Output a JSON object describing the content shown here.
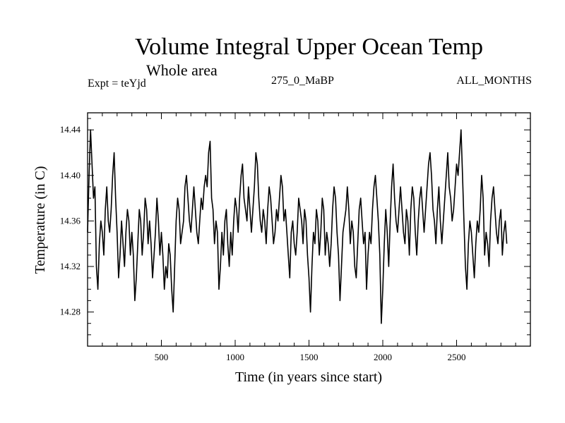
{
  "header": {
    "title": "Volume Integral Upper Ocean Temp",
    "subtitle": "Whole area",
    "experiment": "Expt = teYjd",
    "center_label": "275_0_MaBP",
    "right_label": "ALL_MONTHS"
  },
  "colors": {
    "line": "#000000",
    "axes": "#000000",
    "background": "#ffffff"
  },
  "chart_data": {
    "type": "line",
    "title": "Volume Integral Upper Ocean Temp",
    "subtitle": "Whole area",
    "xlabel": "Time (in years since start)",
    "ylabel": "Temperature (in C)",
    "xlim": [
      0,
      3000
    ],
    "ylim": [
      14.25,
      14.455
    ],
    "xticks": [
      500,
      1000,
      1500,
      2000,
      2500
    ],
    "yticks": [
      14.28,
      14.32,
      14.36,
      14.4,
      14.44
    ],
    "xtick_labels": [
      "500",
      "1000",
      "1500",
      "2000",
      "2500"
    ],
    "ytick_labels": [
      "14.28",
      "14.32",
      "14.36",
      "14.40",
      "14.44"
    ],
    "grid": false,
    "series": [
      {
        "name": "Volume Integral Upper Ocean Temp",
        "x_step": 10,
        "x_start": 0,
        "values": [
          14.35,
          14.4,
          14.44,
          14.41,
          14.38,
          14.39,
          14.32,
          14.3,
          14.34,
          14.36,
          14.35,
          14.33,
          14.37,
          14.39,
          14.36,
          14.35,
          14.37,
          14.4,
          14.42,
          14.38,
          14.35,
          14.31,
          14.33,
          14.36,
          14.34,
          14.32,
          14.35,
          14.37,
          14.36,
          14.33,
          14.35,
          14.33,
          14.29,
          14.31,
          14.34,
          14.37,
          14.36,
          14.33,
          14.35,
          14.38,
          14.37,
          14.34,
          14.36,
          14.34,
          14.31,
          14.33,
          14.35,
          14.38,
          14.36,
          14.33,
          14.35,
          14.33,
          14.3,
          14.32,
          14.31,
          14.34,
          14.33,
          14.3,
          14.28,
          14.32,
          14.36,
          14.38,
          14.37,
          14.34,
          14.35,
          14.36,
          14.39,
          14.4,
          14.38,
          14.36,
          14.35,
          14.37,
          14.39,
          14.37,
          14.35,
          14.34,
          14.36,
          14.38,
          14.37,
          14.39,
          14.4,
          14.39,
          14.42,
          14.43,
          14.38,
          14.37,
          14.34,
          14.36,
          14.35,
          14.3,
          14.32,
          14.35,
          14.33,
          14.36,
          14.37,
          14.34,
          14.32,
          14.35,
          14.33,
          14.36,
          14.38,
          14.37,
          14.35,
          14.38,
          14.4,
          14.41,
          14.38,
          14.37,
          14.36,
          14.39,
          14.37,
          14.35,
          14.37,
          14.39,
          14.42,
          14.41,
          14.38,
          14.36,
          14.35,
          14.37,
          14.36,
          14.34,
          14.37,
          14.39,
          14.38,
          14.36,
          14.34,
          14.35,
          14.37,
          14.36,
          14.38,
          14.4,
          14.39,
          14.36,
          14.37,
          14.35,
          14.33,
          14.31,
          14.35,
          14.36,
          14.34,
          14.33,
          14.35,
          14.38,
          14.37,
          14.36,
          14.34,
          14.37,
          14.36,
          14.33,
          14.31,
          14.28,
          14.32,
          14.35,
          14.34,
          14.37,
          14.36,
          14.33,
          14.35,
          14.38,
          14.37,
          14.33,
          14.35,
          14.34,
          14.32,
          14.34,
          14.37,
          14.39,
          14.38,
          14.35,
          14.33,
          14.29,
          14.32,
          14.35,
          14.36,
          14.37,
          14.39,
          14.37,
          14.34,
          14.36,
          14.35,
          14.32,
          14.31,
          14.34,
          14.37,
          14.38,
          14.36,
          14.34,
          14.35,
          14.3,
          14.33,
          14.35,
          14.34,
          14.37,
          14.39,
          14.4,
          14.38,
          14.36,
          14.33,
          14.27,
          14.3,
          14.34,
          14.37,
          14.35,
          14.32,
          14.36,
          14.39,
          14.41,
          14.38,
          14.36,
          14.35,
          14.37,
          14.39,
          14.37,
          14.35,
          14.34,
          14.37,
          14.36,
          14.33,
          14.37,
          14.39,
          14.38,
          14.35,
          14.33,
          14.36,
          14.38,
          14.39,
          14.37,
          14.35,
          14.37,
          14.39,
          14.41,
          14.42,
          14.4,
          14.37,
          14.36,
          14.34,
          14.37,
          14.39,
          14.36,
          14.34,
          14.36,
          14.38,
          14.4,
          14.42,
          14.39,
          14.38,
          14.36,
          14.37,
          14.39,
          14.41,
          14.4,
          14.42,
          14.44,
          14.4,
          14.36,
          14.32,
          14.3,
          14.34,
          14.36,
          14.35,
          14.33,
          14.31,
          14.34,
          14.36,
          14.35,
          14.37,
          14.4,
          14.38,
          14.33,
          14.35,
          14.34,
          14.32,
          14.36,
          14.38,
          14.39,
          14.37,
          14.35,
          14.34,
          14.36,
          14.37,
          14.33,
          14.35,
          14.36,
          14.34
        ]
      }
    ]
  }
}
